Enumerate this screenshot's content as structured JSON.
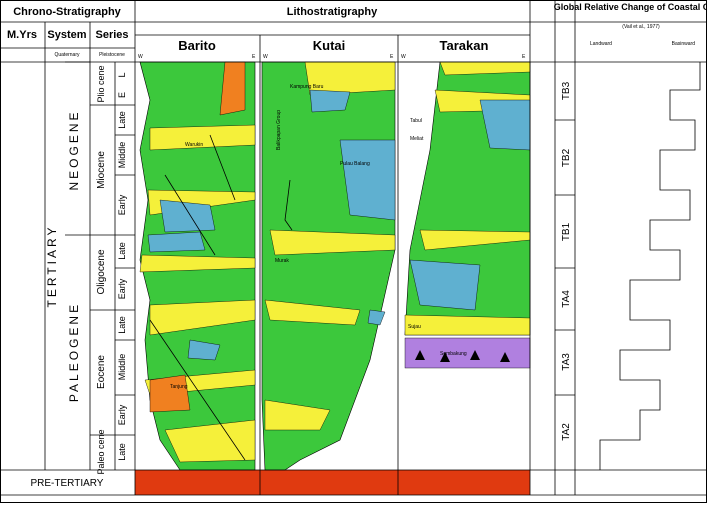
{
  "header": {
    "chrono": "Chrono-Stratigraphy",
    "litho": "Lithostratigraphy",
    "onlap": "Global Relative Change of Coastal Onlap",
    "onlap_source": "(Vail et al., 1977)"
  },
  "columns": [
    "M.Yrs",
    "System",
    "Series"
  ],
  "systems": {
    "quaternary": "Quaternary",
    "pleistocene": "Pleistocene",
    "tertiary": "TERTIARY",
    "neogene": "NEOGENE",
    "paleogene": "PALEOGENE",
    "pre_tertiary": "PRE-TERTIARY"
  },
  "series": [
    {
      "name": "Plio cene",
      "stages": [
        "L",
        "E"
      ]
    },
    {
      "name": "Miocene",
      "stages": [
        "Late",
        "Middle",
        "Early"
      ]
    },
    {
      "name": "Oligocene",
      "stages": [
        "Late",
        "Early"
      ]
    },
    {
      "name": "Eocene",
      "stages": [
        "Late",
        "Middle",
        "Early"
      ]
    },
    {
      "name": "Paleo cene",
      "stages": [
        "Late"
      ]
    }
  ],
  "basins": [
    {
      "name": "Barito",
      "west": "W",
      "east": "E"
    },
    {
      "name": "Kutai",
      "west": "W",
      "east": "E"
    },
    {
      "name": "Tarakan",
      "west": "W",
      "east": "E"
    }
  ],
  "formations": [
    "Warukin",
    "Tanjung",
    "Kampung Baru",
    "Balikpapan Group",
    "Pulau Balang",
    "Murak",
    "Tabul",
    "Meliat",
    "Sujau",
    "Sembakung"
  ],
  "cycles": [
    "TB3",
    "TB2",
    "TB1",
    "TA4",
    "TA3",
    "TA2"
  ],
  "onlap_axis": [
    "Landward",
    "Basinward"
  ]
}
